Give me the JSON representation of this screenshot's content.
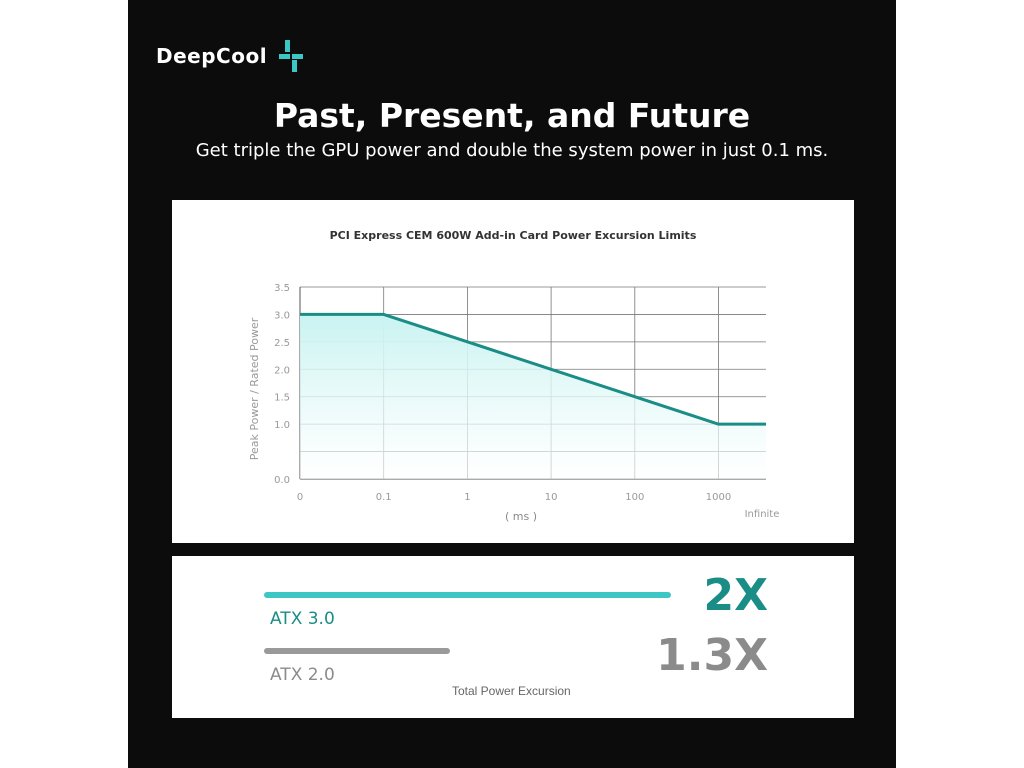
{
  "brand": {
    "name": "DeepCool",
    "logo_icon": "deepcool-logo-mark",
    "accent": "#3cc7c4"
  },
  "headline": "Past, Present, and Future",
  "subheadline": "Get triple the GPU power and double the system power in just 0.1 ms.",
  "chart_data": {
    "type": "area",
    "title": "PCI Express CEM 600W Add-in Card Power Excursion Limits",
    "xlabel": "( ms )",
    "ylabel": "Peak Power / Rated Power",
    "x_tick_labels": [
      "0",
      "0.1",
      "1",
      "10",
      "100",
      "1000",
      "Infinite"
    ],
    "y_tick_labels": [
      "0.0",
      "1.0",
      "1.5",
      "2.0",
      "2.5",
      "3.0",
      "3.5"
    ],
    "ylim": [
      0.0,
      3.5
    ],
    "grid": true,
    "x_scale": "log",
    "series": [
      {
        "points": [
          {
            "x": "0",
            "y": 3.0
          },
          {
            "x": "0.1",
            "y": 3.0
          },
          {
            "x": "1",
            "y": 2.5
          },
          {
            "x": "10",
            "y": 2.0
          },
          {
            "x": "100",
            "y": 1.5
          },
          {
            "x": "1000",
            "y": 1.0
          },
          {
            "x": "Infinite",
            "y": 1.0
          }
        ],
        "color": "#1a8d86",
        "fill": "#c8f3f1"
      }
    ]
  },
  "comparison": {
    "atx3": {
      "label": "ATX 3.0",
      "multiplier": "2X",
      "value": 2.0,
      "color": "#3cc7c4"
    },
    "atx2": {
      "label": "ATX 2.0",
      "multiplier": "1.3X",
      "value": 1.3,
      "color": "#9a9a9a"
    },
    "caption": "Total Power Excursion"
  }
}
